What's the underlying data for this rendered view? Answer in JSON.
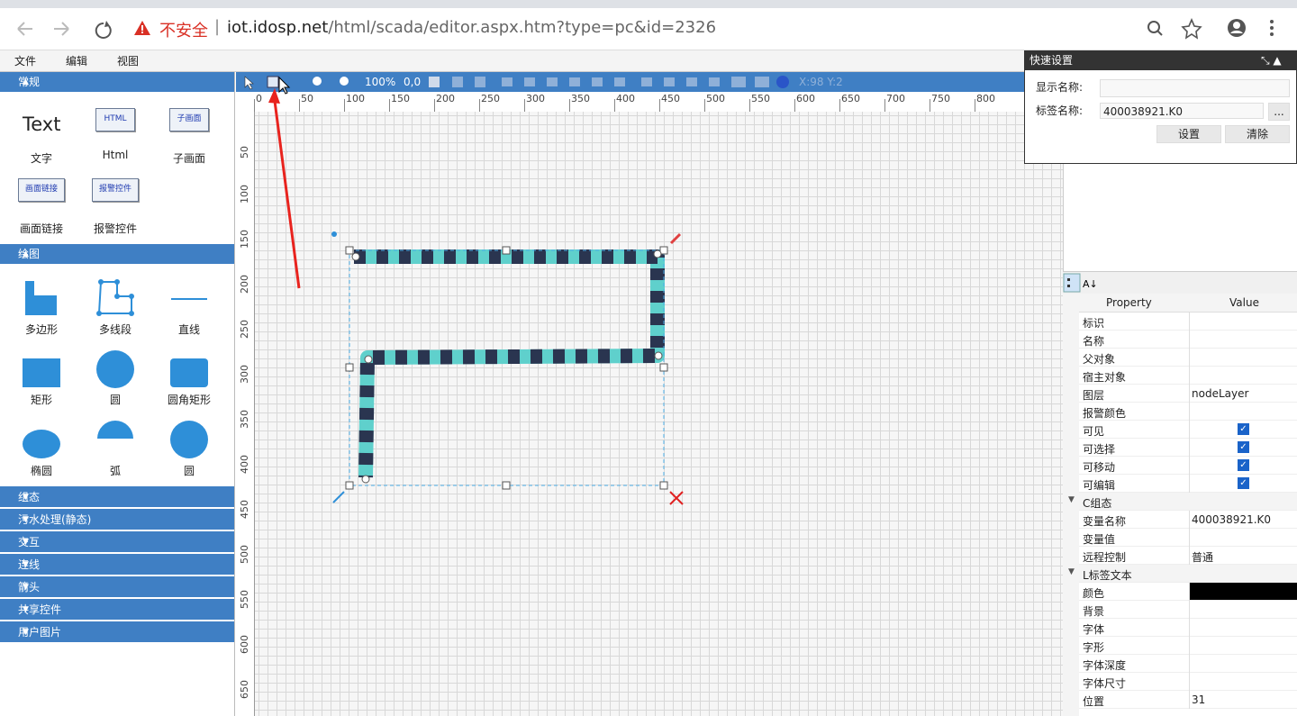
{
  "browser": {
    "warning": "不安全",
    "host": "iot.idosp.net",
    "path": "/html/scada/editor.aspx.htm?type=pc&id=2326"
  },
  "menu": [
    "文件",
    "编辑",
    "视图"
  ],
  "palette": {
    "general": {
      "title": "常规",
      "items": [
        {
          "icon": "Text",
          "label": "文字"
        },
        {
          "icon": "HTML",
          "label": "Html"
        },
        {
          "icon": "子画面",
          "label": "子画面"
        },
        {
          "icon": "画面链接",
          "label": "画面链接"
        },
        {
          "icon": "报警控件",
          "label": "报警控件"
        }
      ]
    },
    "drawing": {
      "title": "绘图",
      "items": [
        "多边形",
        "多线段",
        "直线",
        "矩形",
        "圆",
        "圆角矩形",
        "椭圆",
        "弧",
        "圆"
      ]
    },
    "collapsed": [
      "组态",
      "污水处理(静态)",
      "交互",
      "连线",
      "箭头",
      "共享控件",
      "用户图片"
    ]
  },
  "toolbar": {
    "zoom": "100%",
    "offset": "0,0",
    "cursor": "X:98 Y:2"
  },
  "ruler": {
    "horizontal": [
      "0",
      "50",
      "100",
      "150",
      "200",
      "250",
      "300",
      "350",
      "400",
      "450",
      "500",
      "550",
      "600",
      "650",
      "700",
      "750",
      "800"
    ],
    "vertical": [
      "50",
      "100",
      "150",
      "200",
      "250",
      "300",
      "350",
      "400",
      "450",
      "500",
      "550",
      "600",
      "650"
    ]
  },
  "quick_settings": {
    "title": "快速设置",
    "display_name_label": "显示名称:",
    "tag_name_label": "标签名称:",
    "tag_name": "400038921.K0",
    "browse": "...",
    "set": "设置",
    "clear": "清除"
  },
  "properties": {
    "header": {
      "property": "Property",
      "value": "Value"
    },
    "rows": [
      {
        "name": "标识"
      },
      {
        "name": "名称"
      },
      {
        "name": "父对象"
      },
      {
        "name": "宿主对象"
      },
      {
        "name": "图层",
        "value": "nodeLayer"
      },
      {
        "name": "报警颜色"
      },
      {
        "name": "可见",
        "checked": true
      },
      {
        "name": "可选择",
        "checked": true
      },
      {
        "name": "可移动",
        "checked": true
      },
      {
        "name": "可编辑",
        "checked": true
      },
      {
        "group": "C组态"
      },
      {
        "name": "变量名称",
        "value": "400038921.K0"
      },
      {
        "name": "变量值"
      },
      {
        "name": "远程控制",
        "value": "普通"
      },
      {
        "group": "L标签文本"
      },
      {
        "name": "颜色",
        "color": "#000000"
      },
      {
        "name": "背景"
      },
      {
        "name": "字体"
      },
      {
        "name": "字形"
      },
      {
        "name": "字体深度"
      },
      {
        "name": "字体尺寸"
      },
      {
        "name": "位置",
        "value": "31"
      }
    ]
  }
}
